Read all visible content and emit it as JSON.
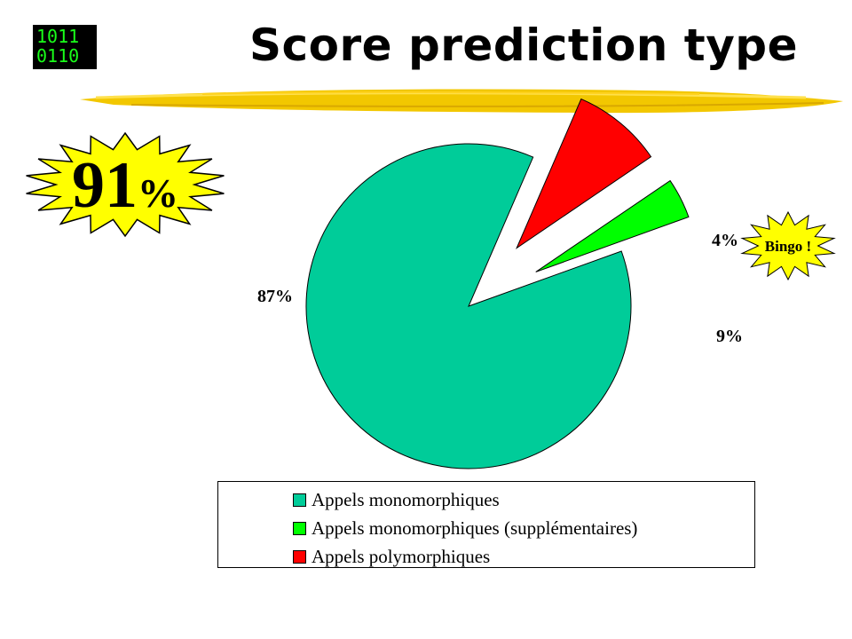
{
  "logo": {
    "line1": "1011",
    "line2": "0110"
  },
  "title": "Score prediction type",
  "highlight": {
    "value": "91",
    "unit": "%"
  },
  "callout": {
    "text": "Bingo !"
  },
  "colors": {
    "burst": "#ffff00",
    "brush": "#f2c700"
  },
  "chart_data": {
    "type": "pie",
    "title": "",
    "exploded": [
      false,
      true,
      true
    ],
    "legend_position": "bottom",
    "slices": [
      {
        "label": "Appels monomorphiques",
        "value": 87,
        "value_label": "87%",
        "color": "#00cc99"
      },
      {
        "label": "Appels monomorphiques (supplémentaires)",
        "value": 4,
        "value_label": "4%",
        "color": "#00ff00"
      },
      {
        "label": "Appels polymorphiques",
        "value": 9,
        "value_label": "9%",
        "color": "#ff0000"
      }
    ]
  }
}
